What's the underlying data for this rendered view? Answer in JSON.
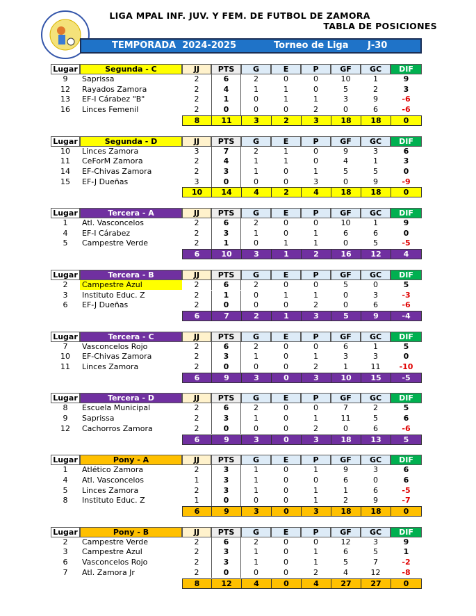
{
  "header": {
    "title": "LIGA MPAL INF. JUV. Y FEM. DE FUTBOL DE ZAMORA",
    "subtitle": "TABLA DE POSICIONES",
    "banner": {
      "season": "TEMPORADA  2024-2025",
      "tournament": "Torneo de Liga",
      "round": "J-30"
    }
  },
  "columns": [
    "Lugar",
    "JJ",
    "PTS",
    "G",
    "E",
    "P",
    "GF",
    "GC",
    "DIF"
  ],
  "groups": [
    {
      "name": "Segunda - C",
      "color": "#ffff00",
      "text_color": "#000000",
      "rows": [
        {
          "place": 9,
          "team": "Saprissa",
          "stats": [
            2,
            6,
            2,
            0,
            0,
            10,
            1,
            9
          ]
        },
        {
          "place": 12,
          "team": "Rayados Zamora",
          "stats": [
            2,
            4,
            1,
            1,
            0,
            5,
            2,
            3
          ]
        },
        {
          "place": 13,
          "team": "EF-I Cárabez \"B\"",
          "stats": [
            2,
            1,
            0,
            1,
            1,
            3,
            9,
            -6
          ]
        },
        {
          "place": 16,
          "team": "Linces Femenil",
          "stats": [
            2,
            0,
            0,
            0,
            2,
            0,
            6,
            -6
          ]
        }
      ],
      "totals": [
        8,
        11,
        3,
        2,
        3,
        18,
        18,
        0
      ]
    },
    {
      "name": "Segunda - D",
      "color": "#ffff00",
      "text_color": "#000000",
      "rows": [
        {
          "place": 10,
          "team": "Linces Zamora",
          "stats": [
            3,
            7,
            2,
            1,
            0,
            9,
            3,
            6
          ]
        },
        {
          "place": 11,
          "team": "CeForM Zamora",
          "stats": [
            2,
            4,
            1,
            1,
            0,
            4,
            1,
            3
          ]
        },
        {
          "place": 14,
          "team": "EF-Chivas Zamora",
          "stats": [
            2,
            3,
            1,
            0,
            1,
            5,
            5,
            0
          ]
        },
        {
          "place": 15,
          "team": "EF-J Dueñas",
          "stats": [
            3,
            0,
            0,
            0,
            3,
            0,
            9,
            -9
          ]
        }
      ],
      "totals": [
        10,
        14,
        4,
        2,
        4,
        18,
        18,
        0
      ]
    },
    {
      "name": "Tercera - A",
      "color": "#7030a0",
      "text_color": "#ffffff",
      "rows": [
        {
          "place": 1,
          "team": "Atl. Vasconcelos",
          "stats": [
            2,
            6,
            2,
            0,
            0,
            10,
            1,
            9
          ]
        },
        {
          "place": 4,
          "team": "EF-I Cárabez",
          "stats": [
            2,
            3,
            1,
            0,
            1,
            6,
            6,
            0
          ]
        },
        {
          "place": 5,
          "team": "Campestre Verde",
          "stats": [
            2,
            1,
            0,
            1,
            1,
            0,
            5,
            -5
          ]
        }
      ],
      "totals": [
        6,
        10,
        3,
        1,
        2,
        16,
        12,
        4
      ]
    },
    {
      "name": "Tercera - B",
      "color": "#7030a0",
      "text_color": "#ffffff",
      "rows": [
        {
          "place": 2,
          "team": "Campestre Azul",
          "stats": [
            2,
            6,
            2,
            0,
            0,
            5,
            0,
            5
          ],
          "highlight": true
        },
        {
          "place": 3,
          "team": "Instituto Educ. Z",
          "stats": [
            2,
            1,
            0,
            1,
            1,
            0,
            3,
            -3
          ]
        },
        {
          "place": 6,
          "team": "EF-J Dueñas",
          "stats": [
            2,
            0,
            0,
            0,
            2,
            0,
            6,
            -6
          ]
        }
      ],
      "totals": [
        6,
        7,
        2,
        1,
        3,
        5,
        9,
        -4
      ]
    },
    {
      "name": "Tercera - C",
      "color": "#7030a0",
      "text_color": "#ffffff",
      "rows": [
        {
          "place": 7,
          "team": "Vasconcelos Rojo",
          "stats": [
            2,
            6,
            2,
            0,
            0,
            6,
            1,
            5
          ]
        },
        {
          "place": 10,
          "team": "EF-Chivas Zamora",
          "stats": [
            2,
            3,
            1,
            0,
            1,
            3,
            3,
            0
          ]
        },
        {
          "place": 11,
          "team": "Linces Zamora",
          "stats": [
            2,
            0,
            0,
            0,
            2,
            1,
            11,
            -10
          ]
        }
      ],
      "totals": [
        6,
        9,
        3,
        0,
        3,
        10,
        15,
        -5
      ]
    },
    {
      "name": "Tercera - D",
      "color": "#7030a0",
      "text_color": "#ffffff",
      "rows": [
        {
          "place": 8,
          "team": "Escuela Municipal",
          "stats": [
            2,
            6,
            2,
            0,
            0,
            7,
            2,
            5
          ]
        },
        {
          "place": 9,
          "team": "Saprissa",
          "stats": [
            2,
            3,
            1,
            0,
            1,
            11,
            5,
            6
          ]
        },
        {
          "place": 12,
          "team": "Cachorros Zamora",
          "stats": [
            2,
            0,
            0,
            0,
            2,
            0,
            6,
            -6
          ]
        }
      ],
      "totals": [
        6,
        9,
        3,
        0,
        3,
        18,
        13,
        5
      ]
    },
    {
      "name": "Pony - A",
      "color": "#ffc000",
      "text_color": "#000000",
      "rows": [
        {
          "place": 1,
          "team": "Atlético Zamora",
          "stats": [
            2,
            3,
            1,
            0,
            1,
            9,
            3,
            6
          ]
        },
        {
          "place": 4,
          "team": "Atl. Vasconcelos",
          "stats": [
            1,
            3,
            1,
            0,
            0,
            6,
            0,
            6
          ]
        },
        {
          "place": 5,
          "team": "Linces Zamora",
          "stats": [
            2,
            3,
            1,
            0,
            1,
            1,
            6,
            -5
          ]
        },
        {
          "place": 8,
          "team": "Instituto Educ. Z",
          "stats": [
            1,
            0,
            0,
            0,
            1,
            2,
            9,
            -7
          ]
        }
      ],
      "totals": [
        6,
        9,
        3,
        0,
        3,
        18,
        18,
        0
      ]
    },
    {
      "name": "Pony - B",
      "color": "#ffc000",
      "text_color": "#000000",
      "rows": [
        {
          "place": 2,
          "team": "Campestre Verde",
          "stats": [
            2,
            6,
            2,
            0,
            0,
            12,
            3,
            9
          ]
        },
        {
          "place": 3,
          "team": "Campestre Azul",
          "stats": [
            2,
            3,
            1,
            0,
            1,
            6,
            5,
            1
          ]
        },
        {
          "place": 6,
          "team": "Vasconcelos Rojo",
          "stats": [
            2,
            3,
            1,
            0,
            1,
            5,
            7,
            -2
          ]
        },
        {
          "place": 7,
          "team": "Atl. Zamora Jr",
          "stats": [
            2,
            0,
            0,
            0,
            2,
            4,
            12,
            -8
          ]
        }
      ],
      "totals": [
        8,
        12,
        4,
        0,
        4,
        27,
        27,
        0
      ]
    }
  ]
}
